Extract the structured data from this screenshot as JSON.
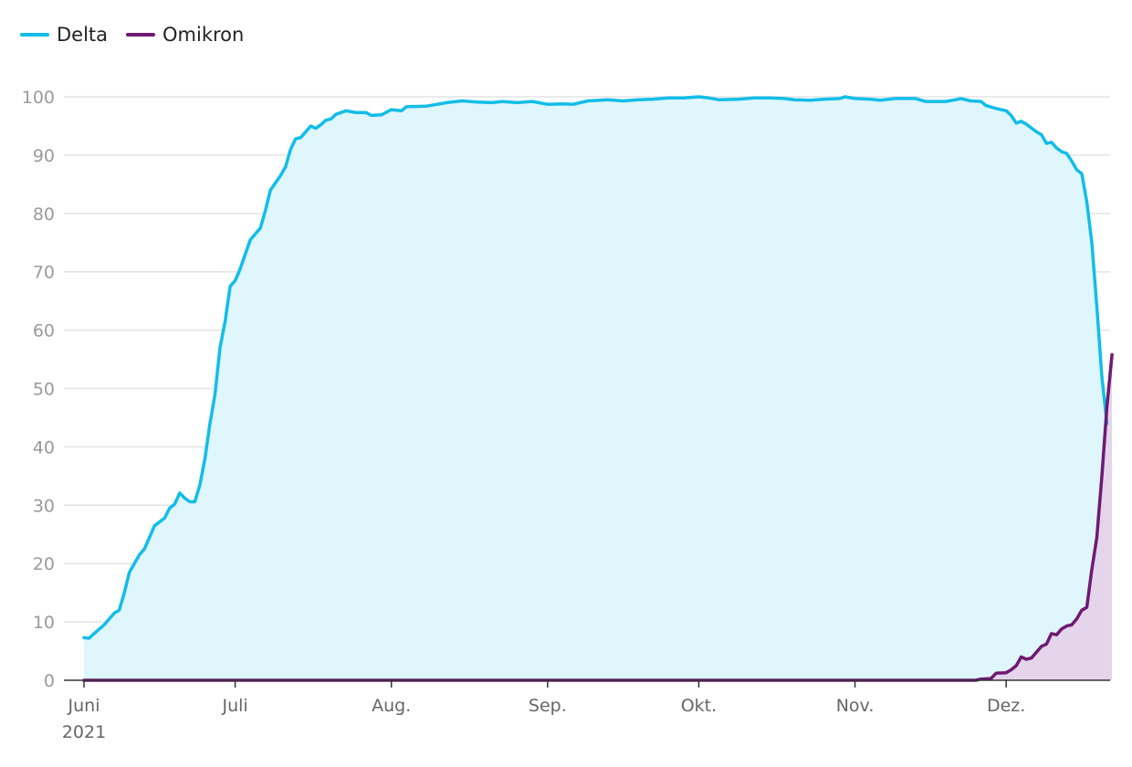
{
  "chart_data": {
    "type": "area",
    "title": "",
    "xlabel": "",
    "ylabel": "",
    "ylim": [
      0,
      100
    ],
    "yticks": [
      0,
      10,
      20,
      30,
      40,
      50,
      60,
      70,
      80,
      90,
      100
    ],
    "xticks": [
      {
        "date": "2021-06-01",
        "label": "Juni",
        "sublabel": "2021"
      },
      {
        "date": "2021-07-01",
        "label": "Juli",
        "sublabel": ""
      },
      {
        "date": "2021-08-01",
        "label": "Aug.",
        "sublabel": ""
      },
      {
        "date": "2021-09-01",
        "label": "Sep.",
        "sublabel": ""
      },
      {
        "date": "2021-10-01",
        "label": "Okt.",
        "sublabel": ""
      },
      {
        "date": "2021-11-01",
        "label": "Nov.",
        "sublabel": ""
      },
      {
        "date": "2021-12-01",
        "label": "Dez.",
        "sublabel": ""
      }
    ],
    "x_start": "2021-06-01",
    "x_end": "2021-12-20",
    "grid": true,
    "legend_position": "top-left",
    "series": [
      {
        "name": "Delta",
        "color": "#12bde8",
        "fill": "#dff6fc",
        "points": [
          [
            "2021-06-01",
            7.3
          ],
          [
            "2021-06-02",
            7.2
          ],
          [
            "2021-06-03",
            8.0
          ],
          [
            "2021-06-05",
            9.5
          ],
          [
            "2021-06-07",
            11.5
          ],
          [
            "2021-06-08",
            12.0
          ],
          [
            "2021-06-09",
            15.0
          ],
          [
            "2021-06-10",
            18.5
          ],
          [
            "2021-06-12",
            21.5
          ],
          [
            "2021-06-13",
            22.5
          ],
          [
            "2021-06-15",
            26.5
          ],
          [
            "2021-06-17",
            27.8
          ],
          [
            "2021-06-18",
            29.5
          ],
          [
            "2021-06-19",
            30.2
          ],
          [
            "2021-06-20",
            32.1
          ],
          [
            "2021-06-21",
            31.2
          ],
          [
            "2021-06-22",
            30.6
          ],
          [
            "2021-06-23",
            30.6
          ],
          [
            "2021-06-24",
            33.5
          ],
          [
            "2021-06-25",
            38.0
          ],
          [
            "2021-06-26",
            44.0
          ],
          [
            "2021-06-27",
            49.0
          ],
          [
            "2021-06-28",
            57.0
          ],
          [
            "2021-06-29",
            61.5
          ],
          [
            "2021-06-30",
            67.5
          ],
          [
            "2021-07-01",
            68.5
          ],
          [
            "2021-07-02",
            70.5
          ],
          [
            "2021-07-03",
            73.0
          ],
          [
            "2021-07-04",
            75.5
          ],
          [
            "2021-07-06",
            77.5
          ],
          [
            "2021-07-07",
            80.5
          ],
          [
            "2021-07-08",
            84.0
          ],
          [
            "2021-07-10",
            86.5
          ],
          [
            "2021-07-11",
            88.0
          ],
          [
            "2021-07-12",
            91.0
          ],
          [
            "2021-07-13",
            92.8
          ],
          [
            "2021-07-14",
            93.0
          ],
          [
            "2021-07-16",
            95.0
          ],
          [
            "2021-07-17",
            94.6
          ],
          [
            "2021-07-18",
            95.2
          ],
          [
            "2021-07-19",
            96.0
          ],
          [
            "2021-07-20",
            96.2
          ],
          [
            "2021-07-21",
            97.0
          ],
          [
            "2021-07-23",
            97.6
          ],
          [
            "2021-07-25",
            97.3
          ],
          [
            "2021-07-27",
            97.3
          ],
          [
            "2021-07-28",
            96.8
          ],
          [
            "2021-07-30",
            96.9
          ],
          [
            "2021-08-01",
            97.8
          ],
          [
            "2021-08-03",
            97.6
          ],
          [
            "2021-08-04",
            98.3
          ],
          [
            "2021-08-08",
            98.4
          ],
          [
            "2021-08-10",
            98.7
          ],
          [
            "2021-08-12",
            99.0
          ],
          [
            "2021-08-15",
            99.3
          ],
          [
            "2021-08-18",
            99.1
          ],
          [
            "2021-08-21",
            99.0
          ],
          [
            "2021-08-23",
            99.2
          ],
          [
            "2021-08-26",
            99.0
          ],
          [
            "2021-08-29",
            99.2
          ],
          [
            "2021-09-01",
            98.7
          ],
          [
            "2021-09-04",
            98.8
          ],
          [
            "2021-09-06",
            98.7
          ],
          [
            "2021-09-09",
            99.3
          ],
          [
            "2021-09-13",
            99.5
          ],
          [
            "2021-09-16",
            99.3
          ],
          [
            "2021-09-19",
            99.5
          ],
          [
            "2021-09-22",
            99.6
          ],
          [
            "2021-09-25",
            99.8
          ],
          [
            "2021-09-28",
            99.8
          ],
          [
            "2021-10-01",
            100.0
          ],
          [
            "2021-10-03",
            99.8
          ],
          [
            "2021-10-05",
            99.5
          ],
          [
            "2021-10-09",
            99.6
          ],
          [
            "2021-10-12",
            99.8
          ],
          [
            "2021-10-15",
            99.8
          ],
          [
            "2021-10-18",
            99.7
          ],
          [
            "2021-10-20",
            99.5
          ],
          [
            "2021-10-23",
            99.4
          ],
          [
            "2021-10-26",
            99.6
          ],
          [
            "2021-10-29",
            99.7
          ],
          [
            "2021-10-30",
            100.0
          ],
          [
            "2021-11-01",
            99.7
          ],
          [
            "2021-11-04",
            99.6
          ],
          [
            "2021-11-06",
            99.4
          ],
          [
            "2021-11-09",
            99.7
          ],
          [
            "2021-11-13",
            99.7
          ],
          [
            "2021-11-15",
            99.2
          ],
          [
            "2021-11-19",
            99.2
          ],
          [
            "2021-11-21",
            99.5
          ],
          [
            "2021-11-22",
            99.7
          ],
          [
            "2021-11-24",
            99.3
          ],
          [
            "2021-11-26",
            99.2
          ],
          [
            "2021-11-27",
            98.5
          ],
          [
            "2021-11-29",
            98.0
          ],
          [
            "2021-12-01",
            97.6
          ],
          [
            "2021-12-02",
            96.8
          ],
          [
            "2021-12-03",
            95.5
          ],
          [
            "2021-12-04",
            95.8
          ],
          [
            "2021-12-05",
            95.3
          ],
          [
            "2021-12-07",
            94.0
          ],
          [
            "2021-12-08",
            93.5
          ],
          [
            "2021-12-09",
            92.0
          ],
          [
            "2021-12-10",
            92.2
          ],
          [
            "2021-12-11",
            91.2
          ],
          [
            "2021-12-12",
            90.6
          ],
          [
            "2021-12-13",
            90.3
          ],
          [
            "2021-12-14",
            89.0
          ],
          [
            "2021-12-15",
            87.5
          ],
          [
            "2021-12-16",
            86.8
          ],
          [
            "2021-12-17",
            82.0
          ],
          [
            "2021-12-18",
            75.0
          ],
          [
            "2021-12-19",
            64.0
          ],
          [
            "2021-12-20",
            52.0
          ],
          [
            "2021-12-21",
            44.0
          ]
        ]
      },
      {
        "name": "Omikron",
        "color": "#6e1a73",
        "fill": "#e4d5ea",
        "points": [
          [
            "2021-06-01",
            0
          ],
          [
            "2021-11-25",
            0
          ],
          [
            "2021-11-26",
            0.2
          ],
          [
            "2021-11-28",
            0.3
          ],
          [
            "2021-11-29",
            1.2
          ],
          [
            "2021-12-01",
            1.3
          ],
          [
            "2021-12-02",
            1.8
          ],
          [
            "2021-12-03",
            2.5
          ],
          [
            "2021-12-04",
            4.0
          ],
          [
            "2021-12-05",
            3.6
          ],
          [
            "2021-12-06",
            3.8
          ],
          [
            "2021-12-07",
            4.8
          ],
          [
            "2021-12-08",
            5.8
          ],
          [
            "2021-12-09",
            6.2
          ],
          [
            "2021-12-10",
            8.0
          ],
          [
            "2021-12-11",
            7.8
          ],
          [
            "2021-12-12",
            8.8
          ],
          [
            "2021-12-13",
            9.3
          ],
          [
            "2021-12-14",
            9.5
          ],
          [
            "2021-12-15",
            10.5
          ],
          [
            "2021-12-16",
            12.0
          ],
          [
            "2021-12-17",
            12.5
          ],
          [
            "2021-12-18",
            19.0
          ],
          [
            "2021-12-19",
            24.5
          ],
          [
            "2021-12-20",
            35.0
          ],
          [
            "2021-12-21",
            47.0
          ],
          [
            "2021-12-22",
            55.8
          ]
        ]
      }
    ]
  }
}
